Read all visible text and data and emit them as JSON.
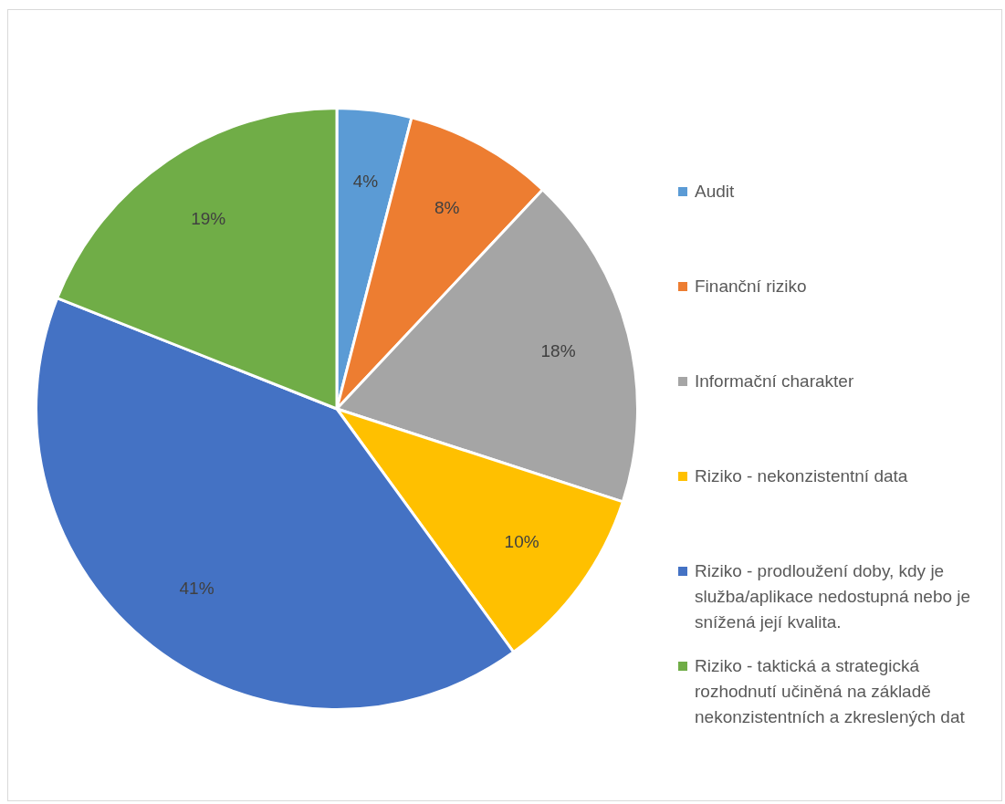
{
  "chart_data": {
    "type": "pie",
    "categories": [
      "Audit",
      "Finanční riziko",
      "Informační charakter",
      "Riziko - nekonzistentní data",
      "Riziko - prodloužení doby, kdy je služba/aplikace nedostupná nebo je snížená její kvalita.",
      "Riziko - taktická a strategická rozhodnutí učiněná na základě nekonzistentních a zkreslených dat"
    ],
    "values": [
      4,
      8,
      18,
      10,
      41,
      19
    ],
    "colors": [
      "#5b9bd5",
      "#ed7d31",
      "#a5a5a5",
      "#ffc000",
      "#4472c4",
      "#70ad47"
    ],
    "value_labels": [
      "4%",
      "8%",
      "18%",
      "10%",
      "41%",
      "19%"
    ],
    "legend": "right"
  }
}
